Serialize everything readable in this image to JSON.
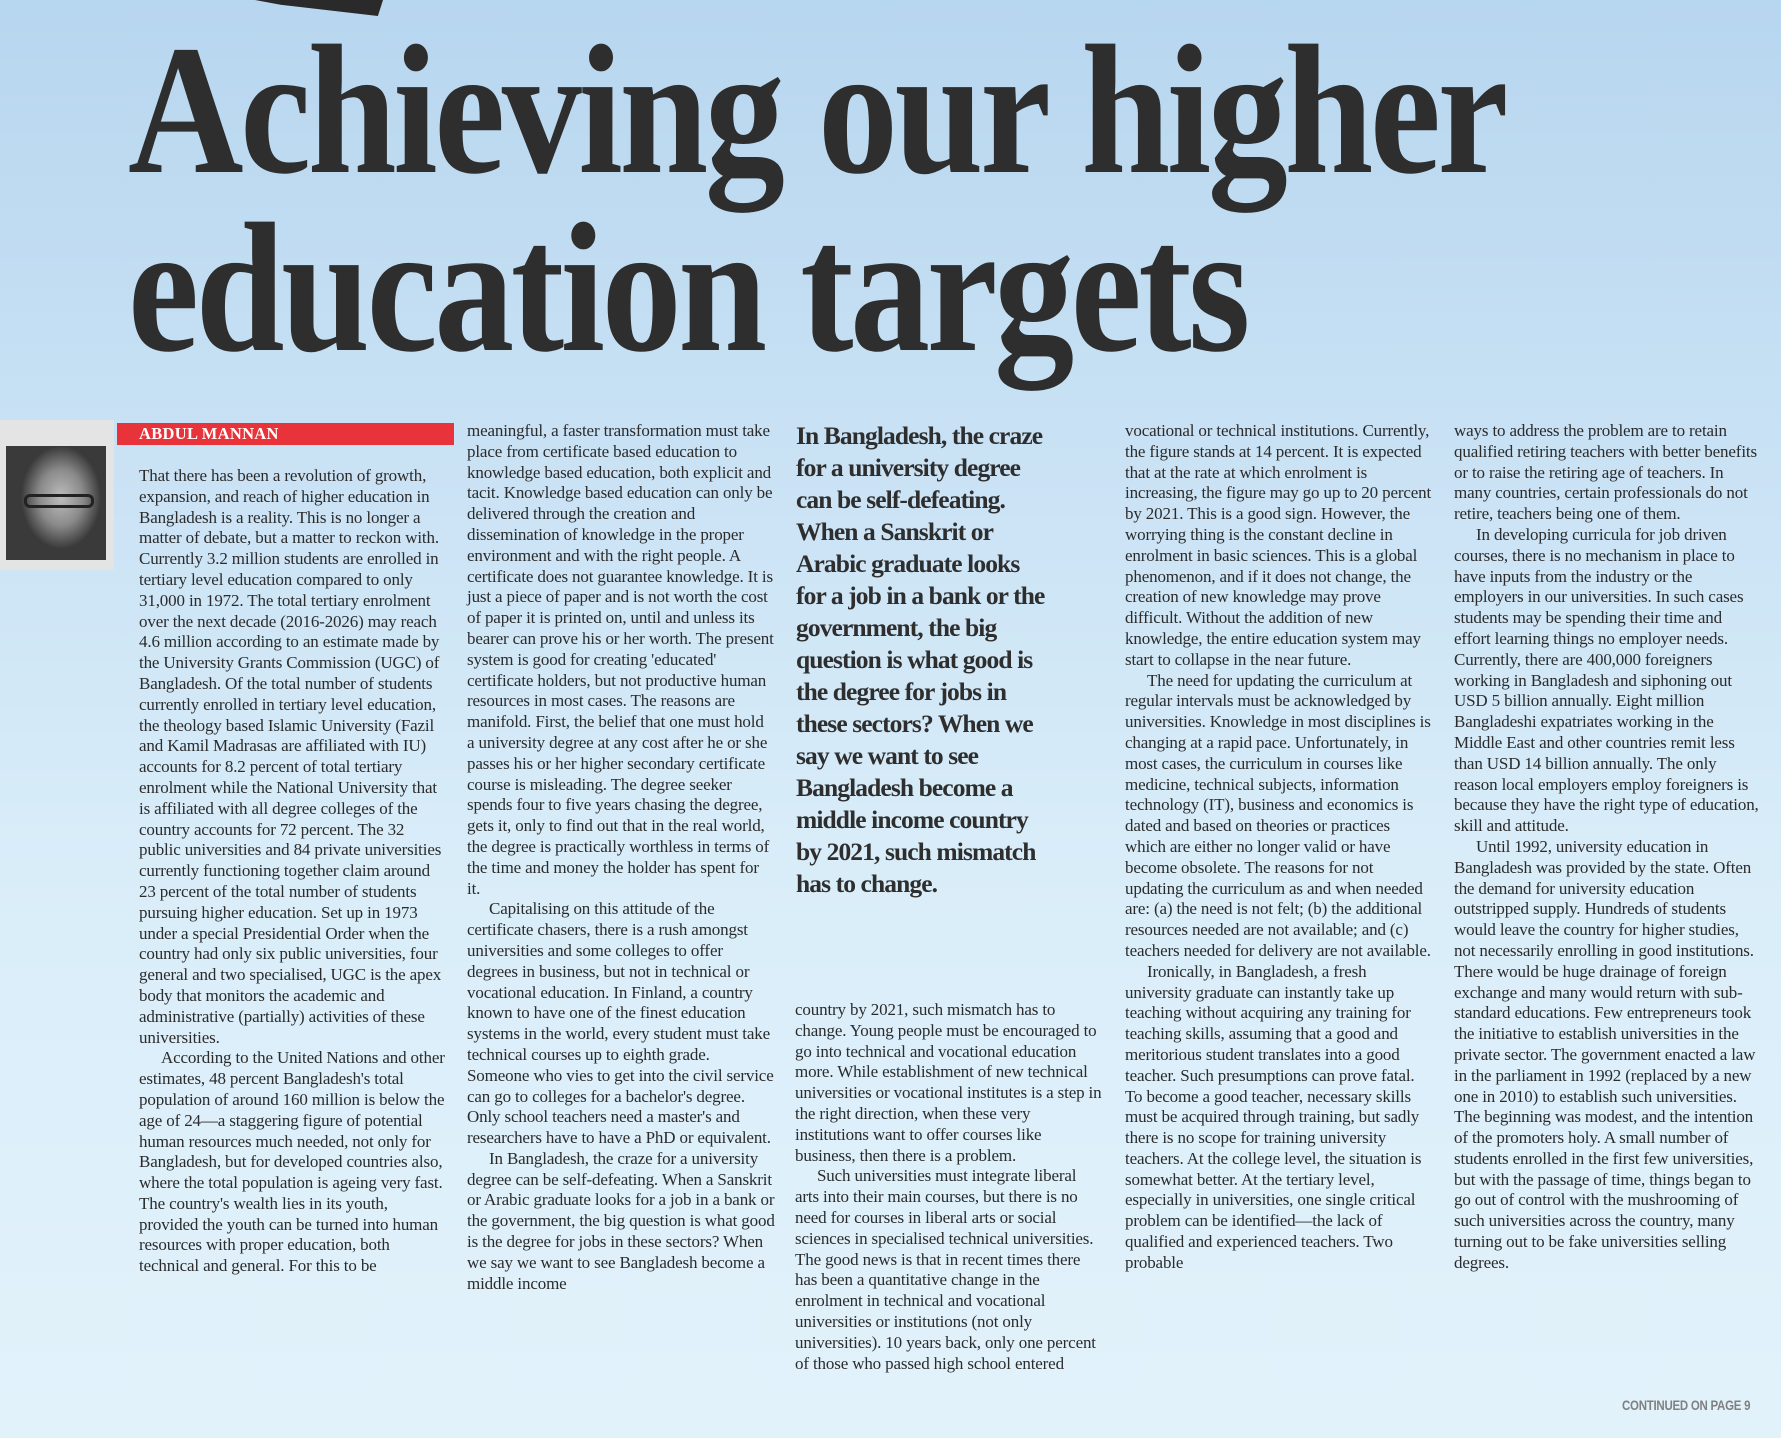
{
  "headline": {
    "line1": "Achieving our higher",
    "line2": "education targets"
  },
  "byline": "ABDUL MANNAN",
  "colors": {
    "byline_bar": "#e8333a",
    "background": "#c8e1f4",
    "text": "#2b2b2b"
  },
  "pull_quote": "In Bangladesh, the craze for a university degree can be self-defeating. When a Sanskrit or Arabic graduate looks for a job in a bank or the government, the big question is what good is the degree for jobs in these sectors? When we say we want to see Bangladesh become a middle income country by 2021, such mismatch has to change.",
  "columns": [
    {
      "paragraphs": [
        "That there has been a revolution of growth, expansion, and reach of higher education in Bangladesh is a reality. This is no longer a matter of debate, but a matter to reckon with. Currently 3.2 million students are enrolled in tertiary level education compared to only 31,000 in 1972. The total tertiary enrolment over the next decade (2016-2026) may reach 4.6 million according to an estimate made by the University Grants Commission (UGC) of Bangladesh. Of the total number of students currently enrolled in tertiary level education, the theology based Islamic University (Fazil and Kamil Madrasas are affiliated with IU) accounts for 8.2 percent of total tertiary enrolment while the National University that is affiliated with all degree colleges of the country accounts for 72 percent. The 32 public universities and 84 private universities currently functioning together claim around 23 percent of the total number of students pursuing higher education. Set up in 1973 under a special Presidential Order when the country had only six public universities, four general and two specialised, UGC is the apex body that monitors the academic and administrative (partially) activities of these universities.",
        "According to the United Nations and other estimates, 48 percent Bangladesh's total population of around 160 million is below the age of 24—a staggering figure of potential human resources much needed, not only for Bangladesh, but for developed countries also, where the total population is ageing very fast. The country's wealth lies in its youth, provided the youth can be turned into human resources with proper education, both technical and general. For this to be"
      ]
    },
    {
      "paragraphs": [
        "meaningful, a faster transformation must take place from certificate based education to knowledge based education, both explicit and tacit. Knowledge based education can only be delivered through the creation and dissemination of knowledge in the proper environment and with the right people. A certificate does not guarantee knowledge. It is just a piece of paper and is not worth the cost of paper it is printed on, until and unless its bearer can prove his or her worth. The present system is good for creating 'educated' certificate holders, but not productive human resources in most cases. The reasons are manifold. First, the belief that one must hold a university degree at any cost after he or she passes his or her higher secondary certificate course is misleading. The degree seeker spends four to five years chasing the degree, gets it, only to find out that in the real world, the degree is practically worthless in terms of the time and money the holder has spent for it.",
        "Capitalising on this attitude of the certificate chasers, there is a rush amongst universities and some colleges to offer degrees in business, but not in technical or vocational education. In Finland, a country known to have one of the finest education systems in the world, every student must take technical courses up to eighth grade. Someone who vies to get into the civil service can go to colleges for a bachelor's degree. Only school teachers need a master's and researchers have to have a PhD or equivalent.",
        "In Bangladesh, the craze for a university degree can be self-defeating. When a Sanskrit or Arabic graduate looks for a job in a bank or the government, the big question is what good is the degree for jobs in these sectors? When we say we want to see Bangladesh become a middle income"
      ]
    },
    {
      "paragraphs": [
        "country by 2021, such mismatch has to change. Young people must be encouraged to go into technical and vocational education more. While establishment of new technical universities or vocational institutes is a step in the right direction, when these very institutions want to offer courses like business, then there is a problem.",
        "Such universities must integrate liberal arts into their main courses, but there is no need for courses in liberal arts or social sciences in specialised technical universities. The good news is that in recent times there has been a quantitative change in the enrolment in technical and vocational universities or institutions (not only universities). 10 years back, only one percent of those who passed high school entered"
      ]
    },
    {
      "paragraphs": [
        "vocational or technical institutions. Currently, the figure stands at 14 percent. It is expected that at the rate at which enrolment is increasing, the figure may go up to 20 percent by 2021. This is a good sign. However, the worrying thing is the constant decline in enrolment in basic sciences. This is a global phenomenon, and if it does not change, the creation of new knowledge may prove difficult. Without the addition of new knowledge, the entire education system may start to collapse in the near future.",
        "The need for updating the curriculum at regular intervals must be acknowledged by universities. Knowledge in most disciplines is changing at a rapid pace. Unfortunately, in most cases, the curriculum in courses like medicine, technical subjects, information technology (IT), business and economics is dated and based on theories or practices which are either no longer valid or have become obsolete. The reasons for not updating the curriculum as and when needed are: (a) the need is not felt; (b) the additional resources needed are not available; and (c) teachers needed for delivery are not available.",
        "Ironically, in Bangladesh, a fresh university graduate can instantly take up teaching without acquiring any training for teaching skills, assuming that a good and meritorious student translates into a good teacher. Such presumptions can prove fatal. To become a good teacher, necessary skills must be acquired through training, but sadly there is no scope for training university teachers. At the college level, the situation is somewhat better. At the tertiary level, especially in universities, one single critical problem can be identified—the lack of qualified and experienced teachers. Two probable"
      ]
    },
    {
      "paragraphs": [
        "ways to address the problem are to retain qualified retiring teachers with better benefits or to raise the retiring age of teachers. In many countries, certain professionals do not retire, teachers being one of them.",
        "In developing curricula for job driven courses, there is no mechanism in place to have inputs from the industry or the employers in our universities. In such cases students may be spending their time and effort learning things no employer needs. Currently, there are 400,000 foreigners working in Bangladesh and siphoning out USD 5 billion annually. Eight million Bangladeshi expatriates working in the Middle East and other countries remit less than USD 14 billion annually. The only reason local employers employ foreigners is because they have the right type of education, skill and attitude.",
        "Until 1992, university education in Bangladesh was provided by the state. Often the demand for university education outstripped supply. Hundreds of students would leave the country for higher studies, not necessarily enrolling in good institutions. There would be huge drainage of foreign exchange and many would return with sub-standard educations. Few entrepreneurs took the initiative to establish universities in the private sector. The government enacted a law in the parliament in 1992 (replaced by a new one in 2010) to establish such universities. The beginning was modest, and the intention of the promoters holy. A small number of students enrolled in the first few universities, but with the passage of time, things began to go out of control with the mushrooming of such universities across the country, many turning out to be fake universities selling degrees."
      ]
    }
  ],
  "continued": "CONTINUED ON PAGE 9"
}
